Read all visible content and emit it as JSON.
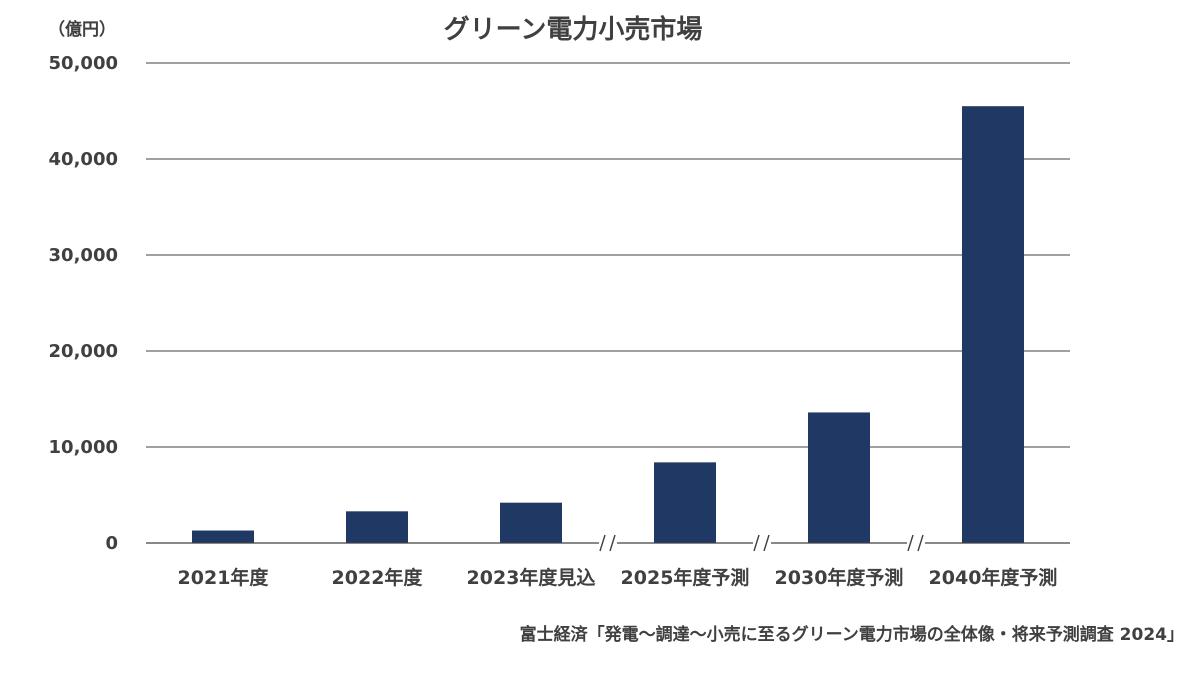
{
  "chart_data": {
    "type": "bar",
    "title": "グリーン電力小売市場",
    "unit_label": "（億円）",
    "categories": [
      "2021年度",
      "2022年度",
      "2023年度見込",
      "2025年度予測",
      "2030年度予測",
      "2040年度予測"
    ],
    "values": [
      1300,
      3300,
      4200,
      8400,
      13600,
      45500
    ],
    "ylim": [
      0,
      50000
    ],
    "yticks": [
      "0",
      "10,000",
      "20,000",
      "30,000",
      "40,000",
      "50,000"
    ],
    "ytick_values": [
      0,
      10000,
      20000,
      30000,
      40000,
      50000
    ],
    "grid": true,
    "axis_breaks_before": [
      "2025年度予測",
      "2030年度予測",
      "2040年度予測"
    ],
    "axis_break_symbol": "//",
    "bar_color": "#203864",
    "source": "富士経済「発電～調達～小売に至るグリーン電力市場の全体像・将来予測調査 2024」"
  }
}
